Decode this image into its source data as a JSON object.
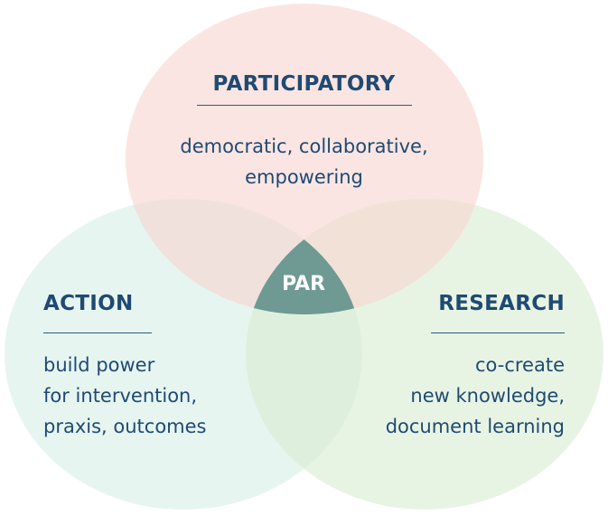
{
  "diagram": {
    "circles": [
      {
        "id": "participatory",
        "title": "PARTICIPATORY",
        "lines": [
          "democratic, collaborative,",
          "empowering"
        ],
        "fill": "#f6d4cf"
      },
      {
        "id": "action",
        "title": "ACTION",
        "lines": [
          "build power",
          "for intervention,",
          "praxis, outcomes"
        ],
        "fill": "#d6efe6"
      },
      {
        "id": "research",
        "title": "RESEARCH",
        "lines": [
          "co-create",
          "new knowledge,",
          "document learning"
        ],
        "fill": "#d9ecd1"
      }
    ],
    "center_label": "PAR",
    "colors": {
      "text": "#1f4a73",
      "center_fill": "#6e9a93",
      "center_text": "#ffffff"
    }
  }
}
